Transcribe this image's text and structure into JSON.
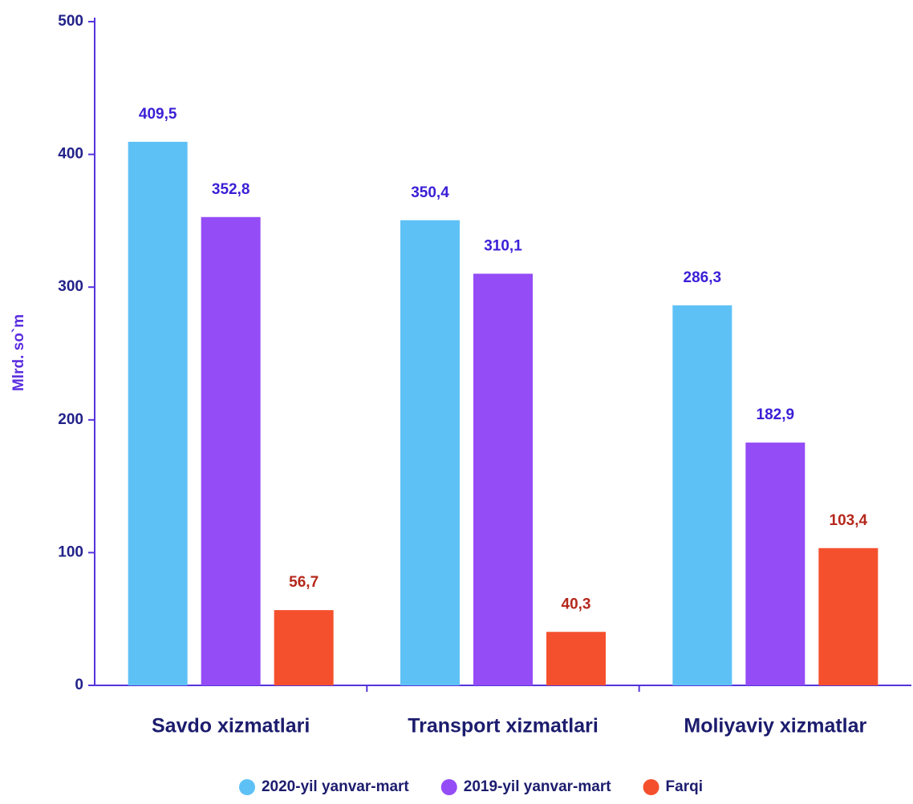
{
  "chart_data": {
    "type": "bar",
    "y_label": "Mlrd. so`m",
    "categories": [
      "Savdo xizmatlari",
      "Transport xizmatlari",
      "Moliyaviy xizmatlar"
    ],
    "series": [
      {
        "name": "2020-yil yanvar-mart",
        "color": "#5ec1f6",
        "label_color": "#3a1fd6",
        "values": [
          409.5,
          350.4,
          286.3
        ],
        "value_labels": [
          "409,5",
          "350,4",
          "286,3"
        ]
      },
      {
        "name": "2019-yil yanvar-mart",
        "color": "#944cf6",
        "label_color": "#3a1fd6",
        "values": [
          352.8,
          310.1,
          182.9
        ],
        "value_labels": [
          "352,8",
          "310,1",
          "182,9"
        ]
      },
      {
        "name": "Farqi",
        "color": "#f5502e",
        "label_color": "#b5281c",
        "values": [
          56.7,
          40.3,
          103.4
        ],
        "value_labels": [
          "56,7",
          "40,3",
          "103,4"
        ]
      }
    ],
    "ylim": [
      0,
      500
    ],
    "yticks": [
      0,
      100,
      200,
      300,
      400,
      500
    ],
    "legend": "bottom"
  }
}
